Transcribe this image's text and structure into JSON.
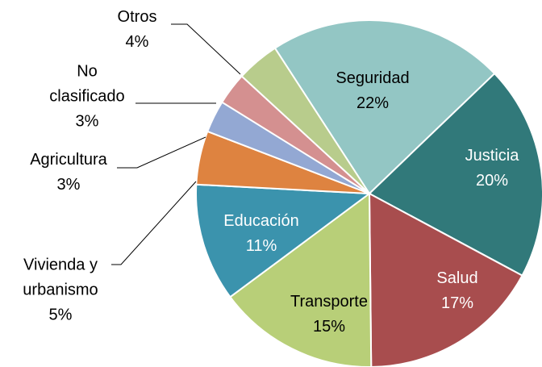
{
  "chart_data": {
    "type": "pie",
    "categories": [
      "Seguridad",
      "Justicia",
      "Salud",
      "Transporte",
      "Educación",
      "Vivienda y urbanismo",
      "Agricultura",
      "No clasificado",
      "Otros"
    ],
    "values": [
      22,
      20,
      17,
      15,
      11,
      5,
      3,
      3,
      4
    ],
    "value_labels": [
      "22%",
      "20%",
      "17%",
      "15%",
      "11%",
      "5%",
      "3%",
      "3%",
      "4%"
    ],
    "colors": [
      "#93c6c4",
      "#31797a",
      "#a84d4e",
      "#b8cf78",
      "#3b93ad",
      "#de8340",
      "#93a8d3",
      "#d49090",
      "#b8cc8c"
    ]
  }
}
